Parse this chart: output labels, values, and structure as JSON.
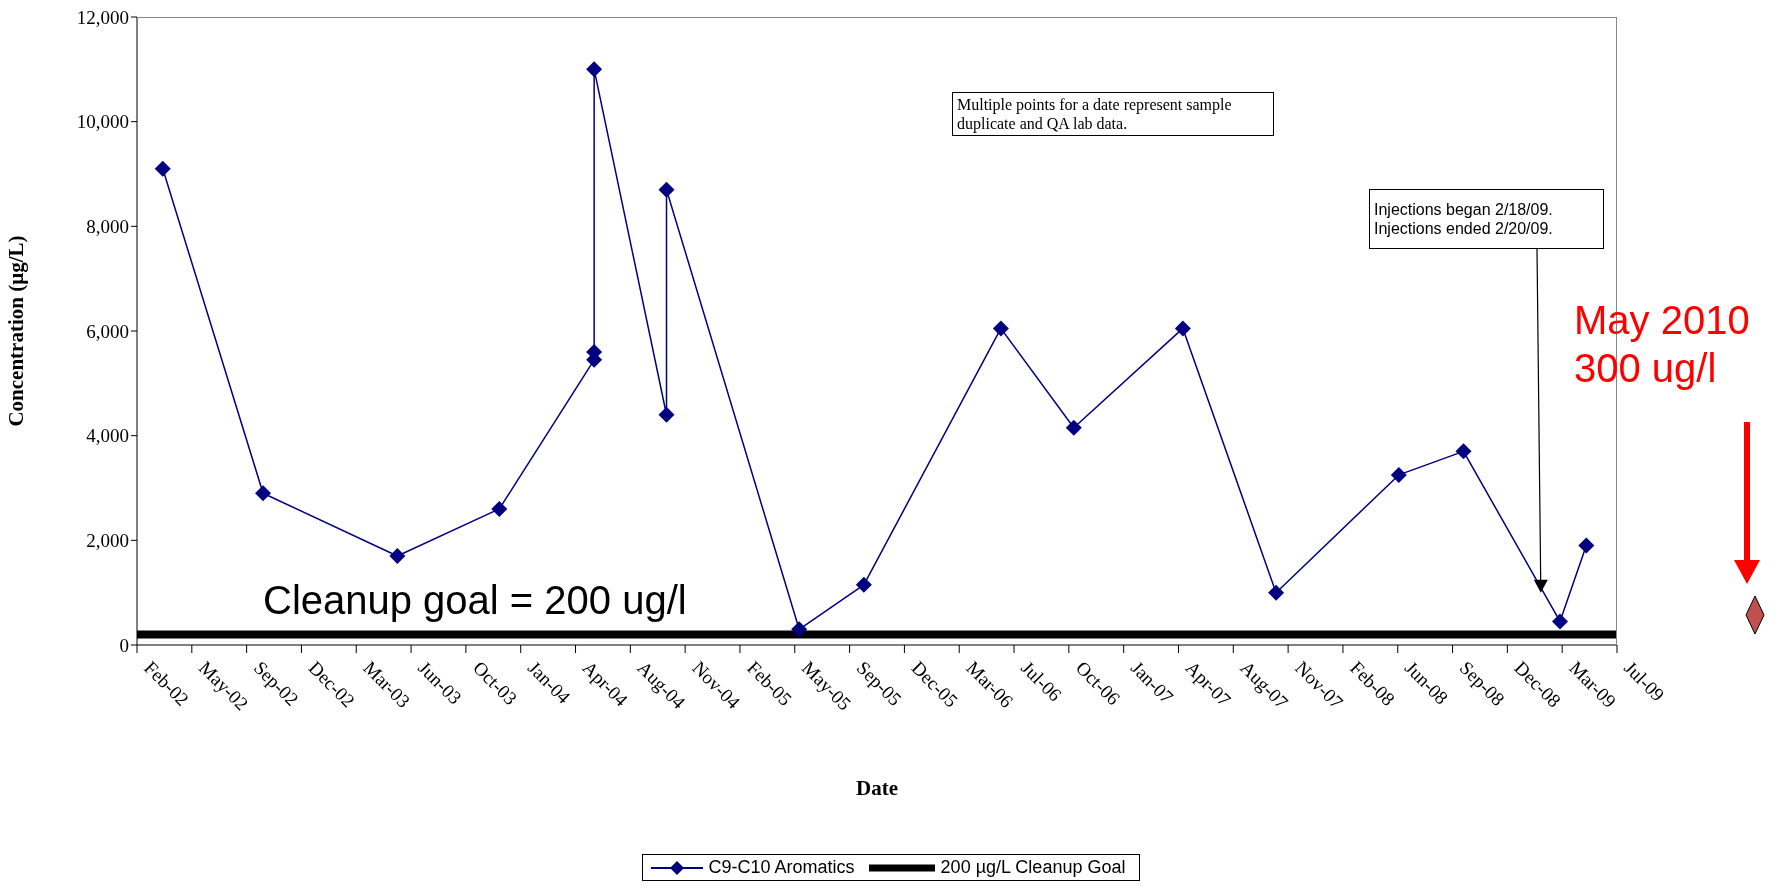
{
  "chart_data": {
    "type": "line",
    "xlabel": "Date",
    "ylabel": "Concentration (µg/L)",
    "xlim": [
      "2002-02-15",
      "2009-07-08"
    ],
    "xticks": [
      {
        "value": "2002-02-15",
        "label": "Feb-02"
      },
      {
        "value": "2002-05-26",
        "label": "May-02"
      },
      {
        "value": "2002-09-03",
        "label": "Sep-02"
      },
      {
        "value": "2002-12-12",
        "label": "Dec-02"
      },
      {
        "value": "2003-03-22",
        "label": "Mar-03"
      },
      {
        "value": "2003-06-30",
        "label": "Jun-03"
      },
      {
        "value": "2003-10-08",
        "label": "Oct-03"
      },
      {
        "value": "2004-01-16",
        "label": "Jan-04"
      },
      {
        "value": "2004-04-25",
        "label": "Apr-04"
      },
      {
        "value": "2004-08-03",
        "label": "Aug-04"
      },
      {
        "value": "2004-11-11",
        "label": "Nov-04"
      },
      {
        "value": "2005-02-19",
        "label": "Feb-05"
      },
      {
        "value": "2005-05-30",
        "label": "May-05"
      },
      {
        "value": "2005-09-07",
        "label": "Sep-05"
      },
      {
        "value": "2005-12-16",
        "label": "Dec-05"
      },
      {
        "value": "2006-03-26",
        "label": "Mar-06"
      },
      {
        "value": "2006-07-04",
        "label": "Jul-06"
      },
      {
        "value": "2006-10-12",
        "label": "Oct-06"
      },
      {
        "value": "2007-01-20",
        "label": "Jan-07"
      },
      {
        "value": "2007-04-30",
        "label": "Apr-07"
      },
      {
        "value": "2007-08-08",
        "label": "Aug-07"
      },
      {
        "value": "2007-11-16",
        "label": "Nov-07"
      },
      {
        "value": "2008-02-24",
        "label": "Feb-08"
      },
      {
        "value": "2008-06-03",
        "label": "Jun-08"
      },
      {
        "value": "2008-09-11",
        "label": "Sep-08"
      },
      {
        "value": "2008-12-20",
        "label": "Dec-08"
      },
      {
        "value": "2009-03-30",
        "label": "Mar-09"
      },
      {
        "value": "2009-07-08",
        "label": "Jul-09"
      }
    ],
    "ylim": [
      0,
      12000
    ],
    "yticks": [
      0,
      {
        "value": 2000,
        "label": "2,000"
      },
      {
        "value": 4000,
        "label": "4,000"
      },
      {
        "value": 6000,
        "label": "6,000"
      },
      {
        "value": 8000,
        "label": "8,000"
      },
      {
        "value": 10000,
        "label": "10,000"
      },
      {
        "value": 12000,
        "label": "12,000"
      }
    ],
    "series": [
      {
        "name": "C9-C10 Aromatics",
        "color": "#000080",
        "x": [
          "2002-04-03",
          "2002-10-03",
          "2003-06-05",
          "2003-12-08",
          "2004-05-29",
          "2004-05-29",
          "2004-05-29",
          "2004-10-08",
          "2004-10-08",
          "2005-06-07",
          "2005-10-03",
          "2006-06-10",
          "2006-10-21",
          "2007-05-08",
          "2007-10-25",
          "2008-06-05",
          "2008-10-01",
          "2009-03-26",
          "2009-05-13"
        ],
        "values": [
          9100,
          2900,
          1700,
          2600,
          5450,
          5600,
          11000,
          4400,
          8700,
          300,
          1150,
          6050,
          4150,
          6050,
          1000,
          3250,
          3700,
          450,
          1900
        ]
      }
    ],
    "ref_lines": [
      {
        "axis": "y",
        "value": 200,
        "label": "200 µg/L Cleanup Goal",
        "color": "#000000",
        "line_style": "solid"
      }
    ],
    "annotations": [
      "Multiple points for a date represent sample duplicate and QA lab data.",
      {
        "text": "Injections began 2/18/09.\nInjections ended 2/20/09.",
        "x": "2009-02-19",
        "y": 1000
      },
      "Cleanup goal = 200 ug/l",
      "May 2010\n300 ug/l"
    ],
    "marker": "diamond",
    "line_style": "solid",
    "legend": "bottom"
  }
}
